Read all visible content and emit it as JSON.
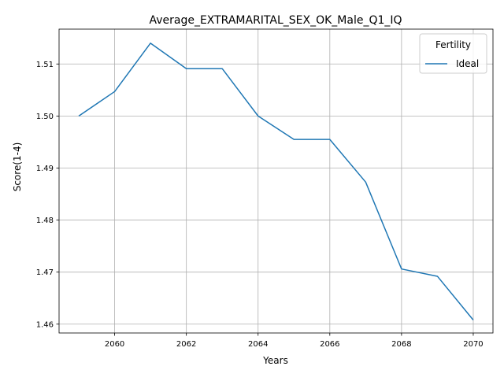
{
  "chart_data": {
    "type": "line",
    "title": "Average_EXTRAMARITAL_SEX_OK_Male_Q1_IQ",
    "xlabel": "Years",
    "ylabel": "Score(1-4)",
    "xlim": [
      2058.45,
      2070.55
    ],
    "ylim": [
      1.4583,
      1.5167
    ],
    "xticks": [
      2060,
      2062,
      2064,
      2066,
      2068,
      2070
    ],
    "yticks": [
      1.46,
      1.47,
      1.48,
      1.49,
      1.5,
      1.51
    ],
    "ytick_labels": [
      "1.46",
      "1.47",
      "1.48",
      "1.49",
      "1.50",
      "1.51"
    ],
    "grid": true,
    "legend": {
      "title": "Fertility",
      "position": "top-right"
    },
    "series": [
      {
        "name": "Ideal",
        "color": "#1f77b4",
        "x": [
          2059,
          2060,
          2061,
          2062,
          2063,
          2064,
          2065,
          2066,
          2067,
          2068,
          2069,
          2070
        ],
        "y": [
          1.5,
          1.5047,
          1.514,
          1.5091,
          1.5091,
          1.5,
          1.4955,
          1.4955,
          1.4873,
          1.4706,
          1.4692,
          1.4608
        ]
      }
    ]
  }
}
